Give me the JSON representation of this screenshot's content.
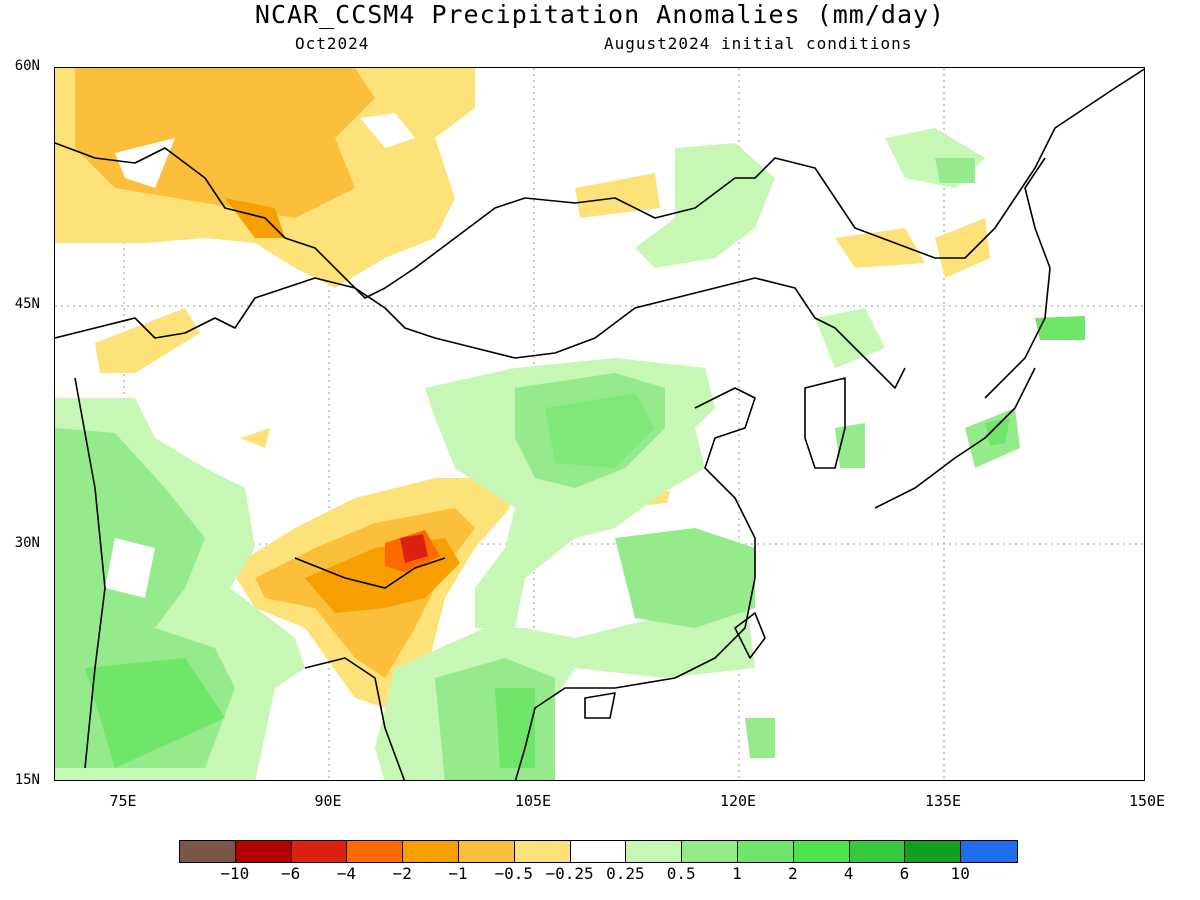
{
  "header": {
    "title": "NCAR_CCSM4 Precipitation Anomalies (mm/day)",
    "month": "Oct2024",
    "init": "August2024 initial conditions"
  },
  "axes": {
    "y_labels": [
      "60N",
      "45N",
      "30N",
      "15N"
    ],
    "x_labels": [
      "75E",
      "90E",
      "105E",
      "120E",
      "135E",
      "150E"
    ]
  },
  "colorbar": {
    "colors": [
      "#7a5548",
      "#b30000",
      "#dd2110",
      "#ff6a00",
      "#f79f00",
      "#fbbf3c",
      "#fde27a",
      "#ffffff",
      "#c6f7b4",
      "#95ea8c",
      "#6fe56a",
      "#4ee24c",
      "#36c93c",
      "#13a01c",
      "#1f6ef0"
    ],
    "labels": [
      "−10",
      "−6",
      "−4",
      "−2",
      "−1",
      "−0.5",
      "−0.25",
      "0.25",
      "0.5",
      "1",
      "2",
      "4",
      "6",
      "10"
    ]
  }
}
